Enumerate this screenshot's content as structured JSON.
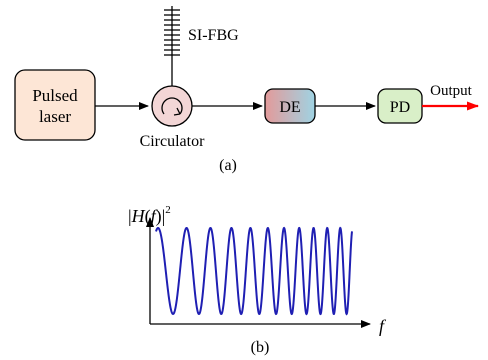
{
  "part_a": {
    "blocks": {
      "laser_line1": "Pulsed",
      "laser_line2": "laser",
      "circulator": "Circulator",
      "fbg": "SI-FBG",
      "de": "DE",
      "pd": "PD",
      "output": "Output"
    },
    "caption": "(a)",
    "colors": {
      "laser_fill": "#fde6d6",
      "circulator_fill": "#f3d6d6",
      "de_left": "#e39a9a",
      "de_right": "#9fd3e3",
      "pd_fill": "#d9efc8",
      "output_arrow": "#ff0000"
    }
  },
  "part_b": {
    "ylabel_parts": [
      "|",
      "H",
      "(",
      "f",
      ")",
      "|",
      "2"
    ],
    "xlabel": "f",
    "caption": "(b)",
    "curve_color": "#1f1fb3",
    "curve": {
      "cycles": 11,
      "chirp": "frequency increases with f",
      "amplitude_range": [
        0,
        1
      ]
    }
  }
}
